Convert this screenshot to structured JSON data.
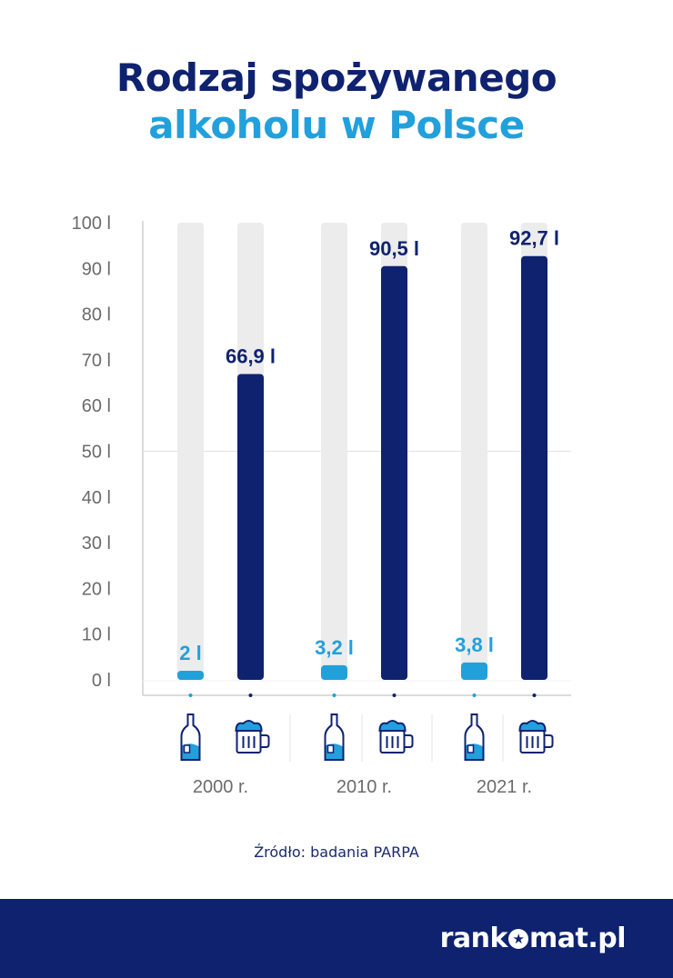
{
  "title": {
    "line1": "Rodzaj spożywanego",
    "line2": "alkoholu w Polsce"
  },
  "colors": {
    "navy": "#0f2270",
    "light_blue": "#22a0dc",
    "track": "#ececec",
    "axis": "#cfcfcf",
    "tick_text": "#6b6b6b"
  },
  "chart_data": {
    "type": "bar",
    "categories": [
      "2000 r.",
      "2010 r.",
      "2021 r."
    ],
    "series": [
      {
        "icon": "bottle-icon",
        "color": "#22a0dc",
        "values": [
          2,
          3.2,
          3.8
        ],
        "labels": [
          "2 l",
          "3,2 l",
          "3,8 l"
        ]
      },
      {
        "icon": "beer-mug-icon",
        "color": "#0f2270",
        "values": [
          66.9,
          90.5,
          92.7
        ],
        "labels": [
          "66,9 l",
          "90,5 l",
          "92,7 l"
        ]
      }
    ],
    "yticks": [
      "0 l",
      "10 l",
      "20 l",
      "30 l",
      "40 l",
      "50 l",
      "60 l",
      "70 l",
      "80 l",
      "90 l",
      "100 l"
    ],
    "ylim": [
      0,
      100
    ],
    "grid": "50 l line only"
  },
  "source": "Źródło: badania PARPA",
  "footer": {
    "logo_left": "rank",
    "logo_right": "mat.pl"
  }
}
